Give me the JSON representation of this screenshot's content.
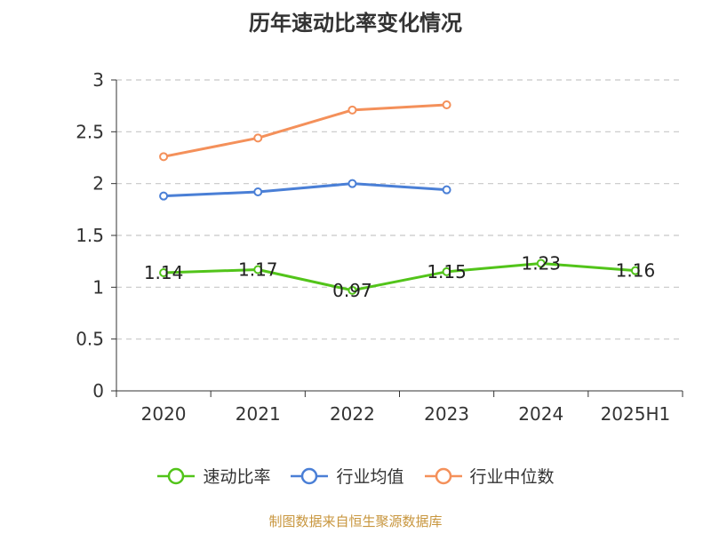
{
  "chart_data": {
    "type": "line",
    "title": "历年速动比率变化情况",
    "categories": [
      "2020",
      "2021",
      "2022",
      "2023",
      "2024",
      "2025H1"
    ],
    "ylim": [
      0,
      3
    ],
    "yticks": [
      "0",
      "0.5",
      "1",
      "1.5",
      "2",
      "2.5",
      "3"
    ],
    "grid": true,
    "legend_position": "bottom",
    "series": [
      {
        "name": "速动比率",
        "color": "#52c41a",
        "values": [
          1.14,
          1.17,
          0.97,
          1.15,
          1.23,
          1.16
        ],
        "labels": [
          "1.14",
          "1.17",
          "0.97",
          "1.15",
          "1.23",
          "1.16"
        ]
      },
      {
        "name": "行业均值",
        "color": "#4a7fd6",
        "values": [
          1.88,
          1.92,
          2.0,
          1.94,
          null,
          null
        ]
      },
      {
        "name": "行业中位数",
        "color": "#f4905a",
        "values": [
          2.26,
          2.44,
          2.71,
          2.76,
          null,
          null
        ]
      }
    ]
  },
  "source": "制图数据来自恒生聚源数据库"
}
